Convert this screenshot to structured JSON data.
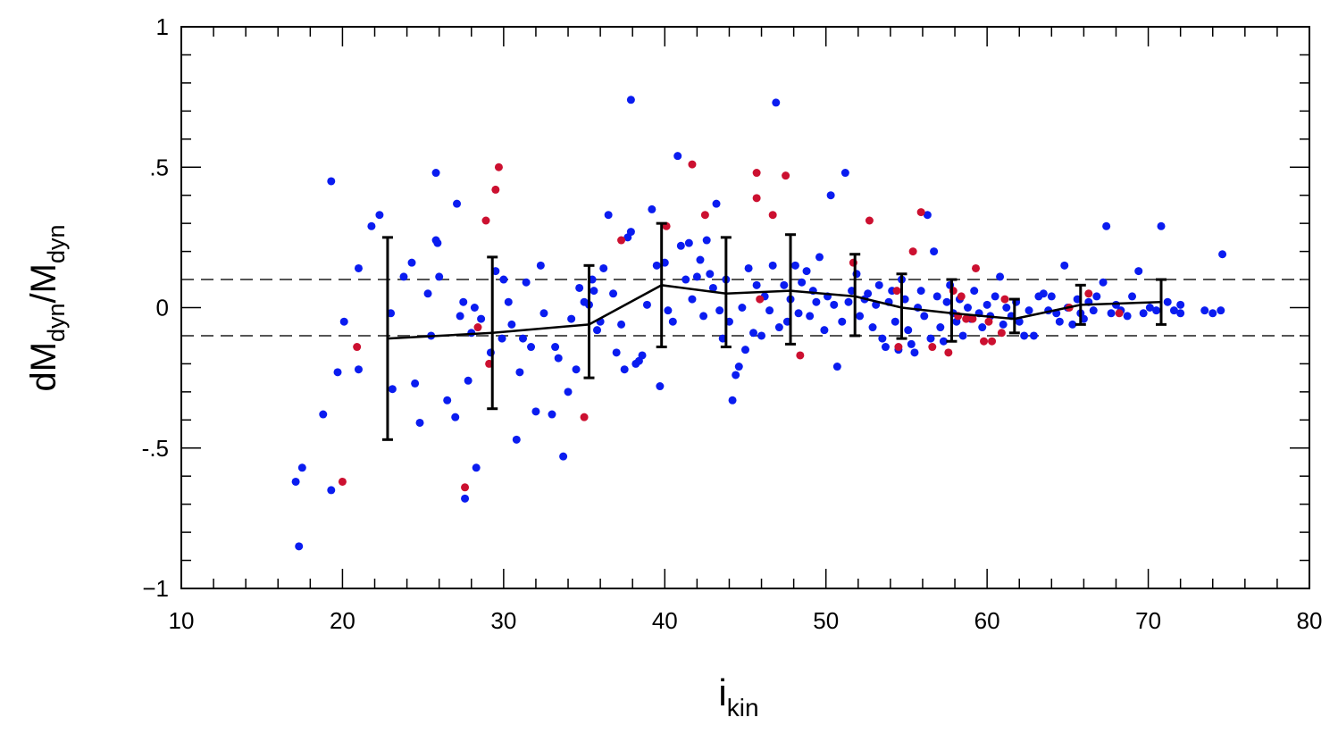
{
  "chart_data": {
    "type": "scatter",
    "title": "",
    "xlabel": "i",
    "xlabel_sub": "kin",
    "ylabel_parts": [
      {
        "text": "dM",
        "sub": false
      },
      {
        "text": "dyn",
        "sub": true
      },
      {
        "text": "/M",
        "sub": false
      },
      {
        "text": "dyn",
        "sub": true
      }
    ],
    "xlim": [
      10,
      80
    ],
    "ylim": [
      -1,
      1
    ],
    "x_ticks": [
      10,
      20,
      30,
      40,
      50,
      60,
      70,
      80
    ],
    "x_tick_labels": [
      "10",
      "20",
      "30",
      "40",
      "50",
      "60",
      "70",
      "80"
    ],
    "x_minor_step": 2,
    "y_ticks": [
      -1,
      -0.5,
      0,
      0.5,
      1
    ],
    "y_tick_labels": [
      "−1",
      "-.5",
      "0",
      ".5",
      "1"
    ],
    "y_minor_step": 0.1,
    "grid": false,
    "colors": {
      "blue": "#0a1cf0",
      "red": "#cc1030",
      "line": "#000000",
      "dashed": "#555555"
    },
    "reference_lines": [
      0.1,
      -0.1
    ],
    "series": [
      {
        "color": "blue",
        "points": [
          [
            17.1,
            -0.62
          ],
          [
            17.5,
            -0.57
          ],
          [
            17.3,
            -0.85
          ],
          [
            18.8,
            -0.38
          ],
          [
            19.3,
            -0.65
          ],
          [
            19.3,
            0.45
          ],
          [
            19.7,
            -0.23
          ],
          [
            20.1,
            -0.05
          ],
          [
            21.0,
            0.14
          ],
          [
            21.0,
            -0.22
          ],
          [
            21.8,
            0.29
          ],
          [
            22.3,
            0.33
          ],
          [
            23.0,
            -0.02
          ],
          [
            23.1,
            -0.29
          ],
          [
            23.8,
            0.11
          ],
          [
            24.3,
            0.16
          ],
          [
            24.5,
            -0.27
          ],
          [
            24.8,
            -0.41
          ],
          [
            25.3,
            0.05
          ],
          [
            25.5,
            -0.1
          ],
          [
            25.8,
            0.24
          ],
          [
            25.9,
            0.23
          ],
          [
            25.8,
            0.48
          ],
          [
            26.0,
            0.11
          ],
          [
            26.5,
            -0.33
          ],
          [
            27.0,
            -0.39
          ],
          [
            27.1,
            0.37
          ],
          [
            27.3,
            -0.03
          ],
          [
            27.5,
            0.02
          ],
          [
            27.6,
            -0.68
          ],
          [
            27.8,
            -0.26
          ],
          [
            28.0,
            -0.09
          ],
          [
            28.2,
            0.0
          ],
          [
            28.3,
            -0.57
          ],
          [
            28.6,
            -0.04
          ],
          [
            29.2,
            -0.16
          ],
          [
            29.5,
            0.13
          ],
          [
            29.9,
            -0.11
          ],
          [
            30.0,
            0.1
          ],
          [
            30.3,
            0.02
          ],
          [
            30.5,
            -0.06
          ],
          [
            30.8,
            -0.47
          ],
          [
            31.0,
            -0.23
          ],
          [
            31.2,
            -0.11
          ],
          [
            31.4,
            0.09
          ],
          [
            31.7,
            -0.14
          ],
          [
            32.0,
            -0.37
          ],
          [
            32.3,
            0.15
          ],
          [
            32.5,
            -0.02
          ],
          [
            33.0,
            -0.38
          ],
          [
            33.2,
            -0.14
          ],
          [
            33.4,
            -0.18
          ],
          [
            33.7,
            -0.53
          ],
          [
            34.0,
            -0.3
          ],
          [
            34.2,
            -0.04
          ],
          [
            34.5,
            -0.22
          ],
          [
            34.7,
            0.07
          ],
          [
            35.0,
            0.02
          ],
          [
            35.3,
            0.01
          ],
          [
            35.5,
            0.1
          ],
          [
            35.6,
            0.06
          ],
          [
            35.8,
            -0.08
          ],
          [
            36.0,
            -0.05
          ],
          [
            36.2,
            0.14
          ],
          [
            36.5,
            0.33
          ],
          [
            36.8,
            0.05
          ],
          [
            37.0,
            -0.16
          ],
          [
            37.3,
            -0.06
          ],
          [
            37.5,
            -0.22
          ],
          [
            37.7,
            0.25
          ],
          [
            37.9,
            0.74
          ],
          [
            37.9,
            0.27
          ],
          [
            38.2,
            -0.2
          ],
          [
            38.4,
            -0.19
          ],
          [
            38.6,
            -0.17
          ],
          [
            38.9,
            0.01
          ],
          [
            39.2,
            0.35
          ],
          [
            39.5,
            0.15
          ],
          [
            39.7,
            -0.28
          ],
          [
            40.0,
            0.16
          ],
          [
            40.2,
            -0.01
          ],
          [
            40.5,
            -0.05
          ],
          [
            40.8,
            0.54
          ],
          [
            41.0,
            0.22
          ],
          [
            41.3,
            0.1
          ],
          [
            41.5,
            0.23
          ],
          [
            41.7,
            0.03
          ],
          [
            42.0,
            0.11
          ],
          [
            42.2,
            0.17
          ],
          [
            42.4,
            -0.03
          ],
          [
            42.6,
            0.24
          ],
          [
            42.8,
            0.12
          ],
          [
            43.0,
            0.07
          ],
          [
            43.2,
            0.37
          ],
          [
            43.4,
            -0.01
          ],
          [
            43.6,
            -0.11
          ],
          [
            43.8,
            0.1
          ],
          [
            44.0,
            -0.05
          ],
          [
            44.2,
            -0.33
          ],
          [
            44.4,
            -0.24
          ],
          [
            44.6,
            -0.21
          ],
          [
            44.8,
            0.0
          ],
          [
            45.0,
            -0.15
          ],
          [
            45.2,
            0.14
          ],
          [
            45.5,
            -0.09
          ],
          [
            45.7,
            0.08
          ],
          [
            46.0,
            -0.1
          ],
          [
            46.2,
            0.04
          ],
          [
            46.5,
            -0.01
          ],
          [
            46.7,
            0.15
          ],
          [
            46.9,
            0.73
          ],
          [
            47.1,
            -0.07
          ],
          [
            47.4,
            0.08
          ],
          [
            47.6,
            -0.05
          ],
          [
            47.8,
            0.03
          ],
          [
            48.1,
            0.15
          ],
          [
            48.3,
            -0.02
          ],
          [
            48.5,
            0.09
          ],
          [
            48.8,
            0.13
          ],
          [
            49.0,
            -0.03
          ],
          [
            49.2,
            0.06
          ],
          [
            49.4,
            0.02
          ],
          [
            49.6,
            0.18
          ],
          [
            49.9,
            -0.08
          ],
          [
            50.1,
            0.04
          ],
          [
            50.3,
            0.4
          ],
          [
            50.5,
            0.01
          ],
          [
            50.7,
            -0.21
          ],
          [
            51.0,
            -0.05
          ],
          [
            51.2,
            0.48
          ],
          [
            51.4,
            0.02
          ],
          [
            51.6,
            0.06
          ],
          [
            51.9,
            0.12
          ],
          [
            52.1,
            -0.03
          ],
          [
            52.4,
            0.03
          ],
          [
            52.6,
            0.05
          ],
          [
            52.9,
            -0.07
          ],
          [
            53.1,
            0.01
          ],
          [
            53.3,
            0.08
          ],
          [
            53.5,
            -0.11
          ],
          [
            53.7,
            -0.14
          ],
          [
            53.9,
            0.02
          ],
          [
            54.1,
            0.06
          ],
          [
            54.3,
            -0.05
          ],
          [
            54.5,
            -0.15
          ],
          [
            54.7,
            0.1
          ],
          [
            54.9,
            0.03
          ],
          [
            55.1,
            -0.08
          ],
          [
            55.3,
            -0.13
          ],
          [
            55.5,
            -0.16
          ],
          [
            55.7,
            0.0
          ],
          [
            55.9,
            0.06
          ],
          [
            56.1,
            -0.03
          ],
          [
            56.3,
            0.33
          ],
          [
            56.5,
            -0.11
          ],
          [
            56.7,
            0.2
          ],
          [
            56.9,
            0.04
          ],
          [
            57.1,
            -0.07
          ],
          [
            57.3,
            -0.12
          ],
          [
            57.5,
            0.02
          ],
          [
            57.7,
            0.08
          ],
          [
            57.9,
            -0.02
          ],
          [
            58.1,
            -0.05
          ],
          [
            58.3,
            0.03
          ],
          [
            58.5,
            -0.1
          ],
          [
            58.8,
            0.0
          ],
          [
            59.0,
            -0.04
          ],
          [
            59.2,
            0.06
          ],
          [
            59.5,
            -0.02
          ],
          [
            59.7,
            -0.07
          ],
          [
            60.0,
            0.01
          ],
          [
            60.2,
            -0.03
          ],
          [
            60.5,
            0.04
          ],
          [
            60.8,
            0.11
          ],
          [
            61.0,
            -0.06
          ],
          [
            61.2,
            0.0
          ],
          [
            61.5,
            -0.03
          ],
          [
            61.8,
            0.02
          ],
          [
            62.0,
            -0.05
          ],
          [
            62.3,
            -0.1
          ],
          [
            62.6,
            -0.01
          ],
          [
            62.9,
            -0.1
          ],
          [
            63.2,
            0.04
          ],
          [
            63.5,
            0.05
          ],
          [
            63.8,
            -0.01
          ],
          [
            64.0,
            0.04
          ],
          [
            64.3,
            -0.02
          ],
          [
            64.5,
            -0.05
          ],
          [
            64.8,
            0.15
          ],
          [
            65.0,
            0.0
          ],
          [
            65.3,
            -0.06
          ],
          [
            65.6,
            0.03
          ],
          [
            65.8,
            -0.02
          ],
          [
            66.0,
            -0.04
          ],
          [
            66.3,
            0.02
          ],
          [
            66.6,
            -0.01
          ],
          [
            66.8,
            0.04
          ],
          [
            67.2,
            0.09
          ],
          [
            67.4,
            0.29
          ],
          [
            67.7,
            -0.02
          ],
          [
            68.0,
            0.01
          ],
          [
            68.3,
            -0.01
          ],
          [
            68.7,
            -0.03
          ],
          [
            69.0,
            0.04
          ],
          [
            69.4,
            0.13
          ],
          [
            69.7,
            -0.02
          ],
          [
            70.1,
            0.0
          ],
          [
            70.5,
            -0.01
          ],
          [
            70.8,
            0.29
          ],
          [
            71.2,
            0.02
          ],
          [
            71.6,
            -0.01
          ],
          [
            72.0,
            -0.02
          ],
          [
            72.0,
            0.01
          ],
          [
            73.5,
            -0.01
          ],
          [
            74.0,
            -0.02
          ],
          [
            74.5,
            -0.01
          ],
          [
            74.6,
            0.19
          ]
        ]
      },
      {
        "color": "red",
        "points": [
          [
            20.0,
            -0.62
          ],
          [
            20.9,
            -0.14
          ],
          [
            28.4,
            -0.07
          ],
          [
            28.9,
            0.31
          ],
          [
            29.1,
            -0.2
          ],
          [
            29.5,
            0.42
          ],
          [
            29.7,
            0.5
          ],
          [
            27.6,
            -0.64
          ],
          [
            35.0,
            -0.39
          ],
          [
            37.3,
            0.24
          ],
          [
            40.1,
            0.29
          ],
          [
            41.7,
            0.51
          ],
          [
            42.5,
            0.33
          ],
          [
            45.7,
            0.48
          ],
          [
            45.7,
            0.39
          ],
          [
            45.9,
            0.03
          ],
          [
            46.7,
            0.33
          ],
          [
            47.5,
            0.47
          ],
          [
            48.4,
            -0.17
          ],
          [
            51.7,
            0.16
          ],
          [
            52.7,
            0.31
          ],
          [
            54.4,
            0.06
          ],
          [
            54.5,
            -0.14
          ],
          [
            55.4,
            0.2
          ],
          [
            55.9,
            0.34
          ],
          [
            56.6,
            -0.14
          ],
          [
            57.6,
            -0.16
          ],
          [
            57.9,
            0.06
          ],
          [
            58.2,
            -0.03
          ],
          [
            58.4,
            0.04
          ],
          [
            58.7,
            -0.04
          ],
          [
            59.1,
            -0.04
          ],
          [
            59.3,
            0.14
          ],
          [
            59.8,
            -0.12
          ],
          [
            60.1,
            -0.05
          ],
          [
            60.3,
            -0.12
          ],
          [
            60.9,
            -0.09
          ],
          [
            61.1,
            0.03
          ],
          [
            65.1,
            0.0
          ],
          [
            66.3,
            0.05
          ],
          [
            68.2,
            -0.02
          ]
        ]
      }
    ],
    "binned_mean": {
      "x": [
        22.8,
        29.3,
        35.3,
        39.8,
        43.8,
        47.8,
        51.8,
        54.7,
        57.8,
        61.7,
        65.8,
        70.8
      ],
      "y": [
        -0.11,
        -0.09,
        -0.06,
        0.08,
        0.05,
        0.06,
        0.04,
        0.0,
        -0.02,
        -0.04,
        0.01,
        0.02
      ],
      "err_low": [
        -0.47,
        -0.36,
        -0.25,
        -0.14,
        -0.14,
        -0.13,
        -0.1,
        -0.11,
        -0.12,
        -0.09,
        -0.06,
        -0.06
      ],
      "err_high": [
        0.25,
        0.18,
        0.15,
        0.3,
        0.25,
        0.26,
        0.19,
        0.12,
        0.1,
        0.03,
        0.08,
        0.1
      ]
    }
  }
}
